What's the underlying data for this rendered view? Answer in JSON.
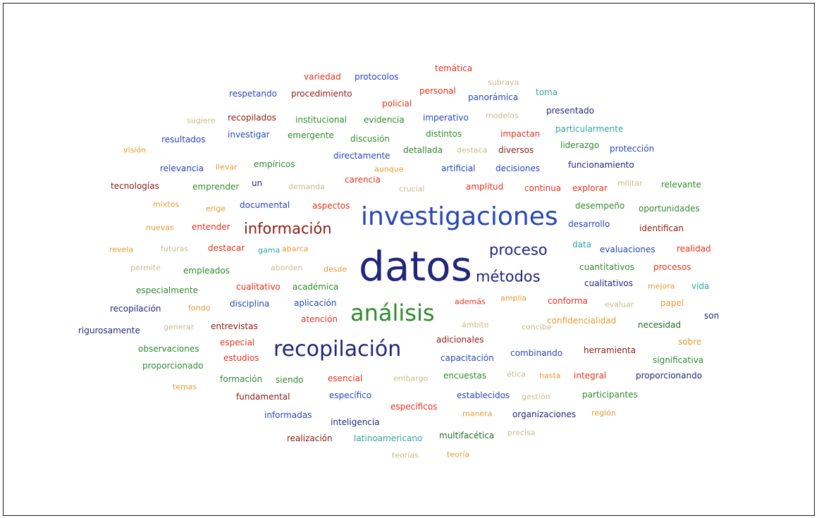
{
  "words": [
    {
      "text": "datos",
      "color": "#22257a"
    },
    {
      "text": "investigaciones",
      "color": "#2745b5"
    },
    {
      "text": "análisis",
      "color": "#2f8a2d"
    },
    {
      "text": "recopilación",
      "color": "#22257a"
    },
    {
      "text": "información",
      "color": "#8b1a13"
    },
    {
      "text": "proceso",
      "color": "#22257a"
    },
    {
      "text": "métodos",
      "color": "#22257a"
    },
    {
      "text": "variedad",
      "color": "#e2311c"
    },
    {
      "text": "protocolos",
      "color": "#2745b5"
    },
    {
      "text": "temática",
      "color": "#e2311c"
    },
    {
      "text": "subraya",
      "color": "#c6bb8a"
    },
    {
      "text": "respetando",
      "color": "#2745b5"
    },
    {
      "text": "procedimiento",
      "color": "#8b1a13"
    },
    {
      "text": "personal",
      "color": "#e2311c"
    },
    {
      "text": "panorámica",
      "color": "#2745b5"
    },
    {
      "text": "toma",
      "color": "#35a3a3"
    },
    {
      "text": "policial",
      "color": "#e2311c"
    },
    {
      "text": "sugiere",
      "color": "#c6bb8a"
    },
    {
      "text": "recopilados",
      "color": "#8b1a13"
    },
    {
      "text": "institucional",
      "color": "#2f8a2d"
    },
    {
      "text": "evidencia",
      "color": "#2f8a2d"
    },
    {
      "text": "imperativo",
      "color": "#2745b5"
    },
    {
      "text": "modelos",
      "color": "#c6bb8a"
    },
    {
      "text": "presentado",
      "color": "#22257a"
    },
    {
      "text": "resultados",
      "color": "#2745b5"
    },
    {
      "text": "investigar",
      "color": "#2745b5"
    },
    {
      "text": "emergente",
      "color": "#2f8a2d"
    },
    {
      "text": "discusión",
      "color": "#2f8a2d"
    },
    {
      "text": "distintos",
      "color": "#2f8a2d"
    },
    {
      "text": "impactan",
      "color": "#e2311c"
    },
    {
      "text": "particularmente",
      "color": "#35a3a3"
    },
    {
      "text": "visión",
      "color": "#e49a32"
    },
    {
      "text": "directamente",
      "color": "#2745b5"
    },
    {
      "text": "detallada",
      "color": "#2f8a2d"
    },
    {
      "text": "destaca",
      "color": "#c6bb8a"
    },
    {
      "text": "diversos",
      "color": "#8b1a13"
    },
    {
      "text": "liderazgo",
      "color": "#2f8a2d"
    },
    {
      "text": "protección",
      "color": "#2745b5"
    },
    {
      "text": "relevancia",
      "color": "#2745b5"
    },
    {
      "text": "llevar",
      "color": "#e49a32"
    },
    {
      "text": "empíricos",
      "color": "#2f8a2d"
    },
    {
      "text": "aunque",
      "color": "#e49a32"
    },
    {
      "text": "artificial",
      "color": "#2745b5"
    },
    {
      "text": "decisiones",
      "color": "#2745b5"
    },
    {
      "text": "funcionamiento",
      "color": "#22257a"
    },
    {
      "text": "tecnologías",
      "color": "#8b1a13"
    },
    {
      "text": "emprender",
      "color": "#2f8a2d"
    },
    {
      "text": "un",
      "color": "#22257a"
    },
    {
      "text": "demanda",
      "color": "#c6bb8a"
    },
    {
      "text": "carencia",
      "color": "#e2311c"
    },
    {
      "text": "crucial",
      "color": "#c6bb8a"
    },
    {
      "text": "amplitud",
      "color": "#e2311c"
    },
    {
      "text": "continua",
      "color": "#e2311c"
    },
    {
      "text": "explorar",
      "color": "#e2311c"
    },
    {
      "text": "militar",
      "color": "#c6bb8a"
    },
    {
      "text": "relevante",
      "color": "#2f8a2d"
    },
    {
      "text": "mixtos",
      "color": "#e49a32"
    },
    {
      "text": "erige",
      "color": "#e49a32"
    },
    {
      "text": "documental",
      "color": "#2745b5"
    },
    {
      "text": "aspectos",
      "color": "#e2311c"
    },
    {
      "text": "desempeño",
      "color": "#2f8a2d"
    },
    {
      "text": "oportunidades",
      "color": "#2f8a2d"
    },
    {
      "text": "nuevas",
      "color": "#e49a32"
    },
    {
      "text": "entender",
      "color": "#e2311c"
    },
    {
      "text": "desarrollo",
      "color": "#2745b5"
    },
    {
      "text": "identifican",
      "color": "#8b1a13"
    },
    {
      "text": "revela",
      "color": "#e49a32"
    },
    {
      "text": "futuras",
      "color": "#c6bb8a"
    },
    {
      "text": "destacar",
      "color": "#e2311c"
    },
    {
      "text": "gama",
      "color": "#35a3a3"
    },
    {
      "text": "abarca",
      "color": "#e49a32"
    },
    {
      "text": "data",
      "color": "#35a3a3"
    },
    {
      "text": "evaluaciones",
      "color": "#2745b5"
    },
    {
      "text": "realidad",
      "color": "#e2311c"
    },
    {
      "text": "permite",
      "color": "#c6bb8a"
    },
    {
      "text": "empleados",
      "color": "#2f8a2d"
    },
    {
      "text": "aborden",
      "color": "#c6bb8a"
    },
    {
      "text": "desde",
      "color": "#e49a32"
    },
    {
      "text": "cuantitativos",
      "color": "#2f8a2d"
    },
    {
      "text": "procesos",
      "color": "#e2311c"
    },
    {
      "text": "cualitativo",
      "color": "#e2311c"
    },
    {
      "text": "académica",
      "color": "#2f8a2d"
    },
    {
      "text": "cualitativos",
      "color": "#22257a"
    },
    {
      "text": "mejora",
      "color": "#e49a32"
    },
    {
      "text": "vida",
      "color": "#35a3a3"
    },
    {
      "text": "especialmente",
      "color": "#2f8a2d"
    },
    {
      "text": "recopilación",
      "color": "#22257a"
    },
    {
      "text": "fondo",
      "color": "#e49a32"
    },
    {
      "text": "disciplina",
      "color": "#2745b5"
    },
    {
      "text": "aplicación",
      "color": "#2745b5"
    },
    {
      "text": "además",
      "color": "#e2311c"
    },
    {
      "text": "amplia",
      "color": "#e49a32"
    },
    {
      "text": "conforma",
      "color": "#e2311c"
    },
    {
      "text": "evaluar",
      "color": "#c6bb8a"
    },
    {
      "text": "papel",
      "color": "#e49a32"
    },
    {
      "text": "rigurosamente",
      "color": "#22257a"
    },
    {
      "text": "generar",
      "color": "#c6bb8a"
    },
    {
      "text": "entrevistas",
      "color": "#8b1a13"
    },
    {
      "text": "atención",
      "color": "#e2311c"
    },
    {
      "text": "ámbito",
      "color": "#c6bb8a"
    },
    {
      "text": "concibe",
      "color": "#c6bb8a"
    },
    {
      "text": "confidencialidad",
      "color": "#e49a32"
    },
    {
      "text": "necesidad",
      "color": "#1f6a26"
    },
    {
      "text": "son",
      "color": "#22257a"
    },
    {
      "text": "observaciones",
      "color": "#2f8a2d"
    },
    {
      "text": "especial",
      "color": "#e2311c"
    },
    {
      "text": "adicionales",
      "color": "#8b1a13"
    },
    {
      "text": "sobre",
      "color": "#e49a32"
    },
    {
      "text": "estudios",
      "color": "#e2311c"
    },
    {
      "text": "capacitación",
      "color": "#2745b5"
    },
    {
      "text": "combinando",
      "color": "#2745b5"
    },
    {
      "text": "herramienta",
      "color": "#8b1a13"
    },
    {
      "text": "significativa",
      "color": "#2f8a2d"
    },
    {
      "text": "proporcionado",
      "color": "#2f8a2d"
    },
    {
      "text": "formación",
      "color": "#2f8a2d"
    },
    {
      "text": "siendo",
      "color": "#2f8a2d"
    },
    {
      "text": "esencial",
      "color": "#e2311c"
    },
    {
      "text": "embargo",
      "color": "#c6bb8a"
    },
    {
      "text": "encuestas",
      "color": "#2f8a2d"
    },
    {
      "text": "ética",
      "color": "#c6bb8a"
    },
    {
      "text": "hasta",
      "color": "#e49a32"
    },
    {
      "text": "integral",
      "color": "#e2311c"
    },
    {
      "text": "proporcionando",
      "color": "#22257a"
    },
    {
      "text": "temas",
      "color": "#e49a32"
    },
    {
      "text": "fundamental",
      "color": "#8b1a13"
    },
    {
      "text": "específico",
      "color": "#2745b5"
    },
    {
      "text": "establecidos",
      "color": "#2745b5"
    },
    {
      "text": "gestión",
      "color": "#c6bb8a"
    },
    {
      "text": "participantes",
      "color": "#2f8a2d"
    },
    {
      "text": "específicos",
      "color": "#e2311c"
    },
    {
      "text": "informadas",
      "color": "#2745b5"
    },
    {
      "text": "manera",
      "color": "#e49a32"
    },
    {
      "text": "organizaciones",
      "color": "#22257a"
    },
    {
      "text": "región",
      "color": "#e49a32"
    },
    {
      "text": "inteligencia",
      "color": "#22257a"
    },
    {
      "text": "realización",
      "color": "#8b1a13"
    },
    {
      "text": "latinoamericano",
      "color": "#35a3a3"
    },
    {
      "text": "multifacética",
      "color": "#1f6a26"
    },
    {
      "text": "precisa",
      "color": "#c6bb8a"
    },
    {
      "text": "teorías",
      "color": "#c6bb8a"
    },
    {
      "text": "teoría",
      "color": "#e49a32"
    }
  ]
}
